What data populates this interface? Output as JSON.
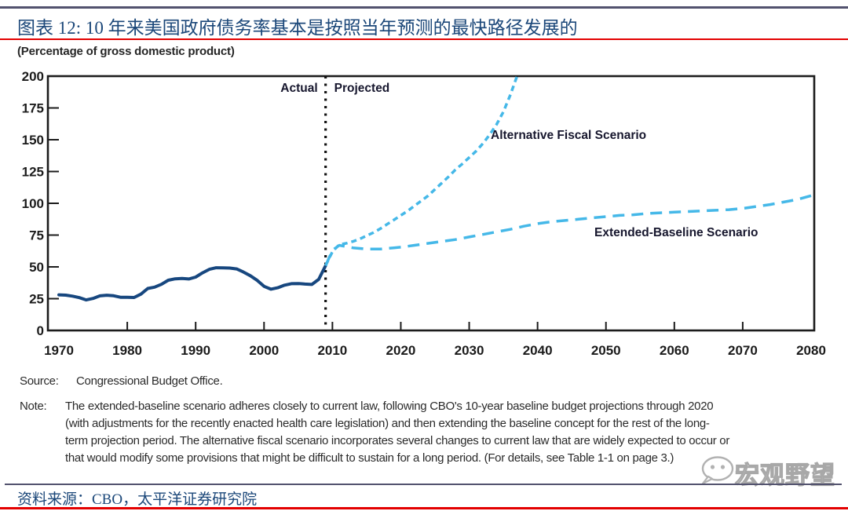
{
  "page": {
    "title": "图表 12: 10 年来美国政府债务率基本是按照当年预测的最快路径发展的",
    "subtitle": "(Percentage of gross domestic product)",
    "source_label": "Source:",
    "source_text": "Congressional Budget Office.",
    "note_label": "Note:",
    "note_lines": [
      "The extended-baseline scenario adheres closely to current law, following CBO's 10-year baseline budget projections through 2020",
      "(with adjustments for the recently enacted health care legislation) and then extending the baseline concept for the rest of the long-",
      "term projection period. The alternative fiscal scenario incorporates several changes to current law that are widely expected to occur or",
      "that would modify some provisions that might be difficult to sustain for a long period. (For details, see Table 1-1 on page 3.)"
    ],
    "footer_source": "资料来源：CBO，太平洋证券研究院",
    "watermark_text": "宏观野望"
  },
  "colors": {
    "title_blue": "#1b4779",
    "accent_red": "#e30000",
    "rule_dark": "#52526e",
    "actual_line": "#17477f",
    "projection_line": "#45b8e8",
    "axis_black": "#1c1c1c"
  },
  "chart_data": {
    "type": "line",
    "title": "10 年来美国政府债务率基本是按照当年预测的最快路径发展的",
    "ylabel": "(Percentage of gross domestic product)",
    "xlim": [
      1968.4,
      2080.5
    ],
    "ylim": [
      0,
      200
    ],
    "x_ticks": [
      1970,
      1980,
      1990,
      2000,
      2010,
      2020,
      2030,
      2040,
      2050,
      2060,
      2070,
      2080
    ],
    "y_ticks": [
      0,
      25,
      50,
      75,
      100,
      125,
      150,
      175,
      200
    ],
    "grid": false,
    "divider": {
      "year": 2009,
      "left_label": "Actual",
      "right_label": "Projected"
    },
    "series": [
      {
        "name": "Actual",
        "style": "solid",
        "color": "#17477f",
        "points": [
          [
            1970,
            28
          ],
          [
            1971,
            27.8
          ],
          [
            1972,
            27
          ],
          [
            1973,
            25.8
          ],
          [
            1974,
            24
          ],
          [
            1975,
            25.2
          ],
          [
            1976,
            27.2
          ],
          [
            1977,
            27.7
          ],
          [
            1978,
            27.3
          ],
          [
            1979,
            26.1
          ],
          [
            1980,
            26.1
          ],
          [
            1981,
            25.9
          ],
          [
            1982,
            28.6
          ],
          [
            1983,
            33
          ],
          [
            1984,
            34.1
          ],
          [
            1985,
            36.3
          ],
          [
            1986,
            39.5
          ],
          [
            1987,
            40.6
          ],
          [
            1988,
            40.9
          ],
          [
            1989,
            40.5
          ],
          [
            1990,
            42
          ],
          [
            1991,
            45.3
          ],
          [
            1992,
            48.1
          ],
          [
            1993,
            49.3
          ],
          [
            1994,
            49.2
          ],
          [
            1995,
            49.1
          ],
          [
            1996,
            48.4
          ],
          [
            1997,
            45.9
          ],
          [
            1998,
            43
          ],
          [
            1999,
            39.4
          ],
          [
            2000,
            34.7
          ],
          [
            2001,
            32.5
          ],
          [
            2002,
            33.6
          ],
          [
            2003,
            35.6
          ],
          [
            2004,
            36.8
          ],
          [
            2005,
            36.9
          ],
          [
            2006,
            36.5
          ],
          [
            2007,
            36.2
          ],
          [
            2008,
            40.2
          ],
          [
            2009,
            51
          ]
        ]
      },
      {
        "name": "Alternative Fiscal Scenario",
        "style": "short-dash",
        "color": "#45b8e8",
        "points": [
          [
            2009,
            51
          ],
          [
            2010,
            62
          ],
          [
            2011,
            67.5
          ],
          [
            2012,
            68.5
          ],
          [
            2013,
            70
          ],
          [
            2014,
            72
          ],
          [
            2015,
            74.5
          ],
          [
            2016,
            77
          ],
          [
            2017,
            80
          ],
          [
            2018,
            83.5
          ],
          [
            2019,
            87
          ],
          [
            2020,
            90.5
          ],
          [
            2021,
            94
          ],
          [
            2022,
            98
          ],
          [
            2023,
            102
          ],
          [
            2024,
            106
          ],
          [
            2025,
            111
          ],
          [
            2026,
            116
          ],
          [
            2027,
            121
          ],
          [
            2028,
            126.5
          ],
          [
            2029,
            131
          ],
          [
            2030,
            136
          ],
          [
            2031,
            141
          ],
          [
            2032,
            147
          ],
          [
            2033,
            154
          ],
          [
            2034,
            162
          ],
          [
            2035,
            172
          ],
          [
            2036,
            185
          ],
          [
            2037,
            200
          ],
          [
            2037.6,
            210
          ]
        ]
      },
      {
        "name": "Extended-Baseline Scenario",
        "style": "long-dash",
        "color": "#45b8e8",
        "points": [
          [
            2009,
            51
          ],
          [
            2010,
            63
          ],
          [
            2011,
            67
          ],
          [
            2012,
            66
          ],
          [
            2013,
            65
          ],
          [
            2014,
            64.5
          ],
          [
            2015,
            64
          ],
          [
            2016,
            64
          ],
          [
            2017,
            64
          ],
          [
            2018,
            64.5
          ],
          [
            2019,
            65
          ],
          [
            2020,
            65.5
          ],
          [
            2022,
            67
          ],
          [
            2024,
            68.5
          ],
          [
            2026,
            70
          ],
          [
            2028,
            71.5
          ],
          [
            2030,
            73.5
          ],
          [
            2032,
            75.5
          ],
          [
            2034,
            77.5
          ],
          [
            2036,
            79.5
          ],
          [
            2038,
            82
          ],
          [
            2040,
            84
          ],
          [
            2042,
            85.5
          ],
          [
            2044,
            86.5
          ],
          [
            2046,
            87.5
          ],
          [
            2048,
            88.5
          ],
          [
            2050,
            89.5
          ],
          [
            2052,
            90.5
          ],
          [
            2054,
            91
          ],
          [
            2056,
            92
          ],
          [
            2058,
            92.5
          ],
          [
            2060,
            93
          ],
          [
            2062,
            93.5
          ],
          [
            2064,
            94
          ],
          [
            2066,
            94.5
          ],
          [
            2068,
            95
          ],
          [
            2070,
            96
          ],
          [
            2072,
            97.5
          ],
          [
            2074,
            99
          ],
          [
            2076,
            101
          ],
          [
            2078,
            103
          ],
          [
            2080,
            106
          ]
        ]
      }
    ],
    "legend_position": "inline-annotations"
  }
}
